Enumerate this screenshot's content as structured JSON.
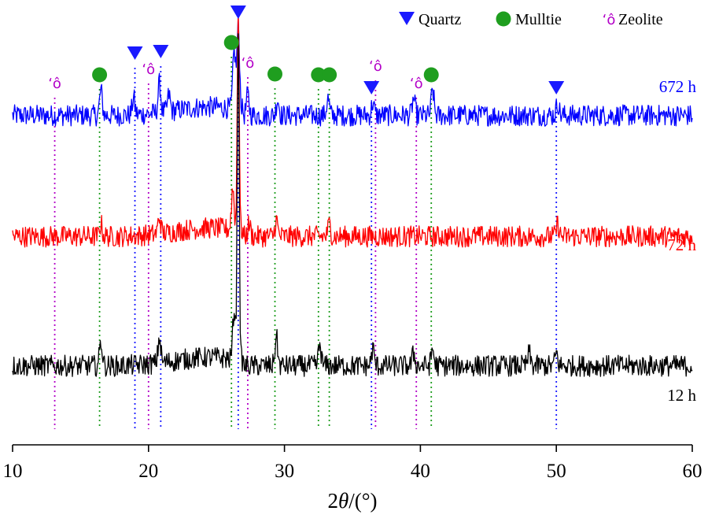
{
  "chart_data": {
    "type": "line",
    "title": "",
    "xlabel": "2θ/(°)",
    "xlabel_prefix": "2",
    "xlabel_theta": "θ",
    "xlabel_suffix": "/(°)",
    "ylabel": "",
    "xlim": [
      10,
      60
    ],
    "xticks": [
      "10",
      "20",
      "30",
      "40",
      "50",
      "60"
    ],
    "ylim": [
      0,
      100
    ],
    "y_axis_visible": false,
    "legend_position": "top-right",
    "legend": [
      {
        "name": "Quartz",
        "marker": "triangle-down",
        "color": "#1a1aff"
      },
      {
        "name": "Mulltie",
        "marker": "circle",
        "color": "#1f9e1f"
      },
      {
        "name": "Zeolite",
        "marker": "glyph",
        "glyph": "‘ô",
        "color": "#b300c8"
      }
    ],
    "series": [
      {
        "name": "672 h",
        "color": "#0000ff",
        "baseline": 78,
        "noise": 1.6,
        "peaks": [
          [
            16.5,
            6
          ],
          [
            18.9,
            4
          ],
          [
            20.8,
            7
          ],
          [
            21.5,
            4
          ],
          [
            26.3,
            14
          ],
          [
            26.6,
            20
          ],
          [
            27.3,
            5
          ],
          [
            29.5,
            4
          ],
          [
            33.2,
            4
          ],
          [
            36.5,
            3
          ],
          [
            39.5,
            4
          ],
          [
            40.9,
            6
          ],
          [
            50.1,
            3
          ]
        ]
      },
      {
        "name": "72 h",
        "color": "#ff0000",
        "baseline": 49,
        "noise": 1.6,
        "peaks": [
          [
            16.5,
            3
          ],
          [
            20.8,
            4
          ],
          [
            26.2,
            10
          ],
          [
            26.6,
            55
          ],
          [
            27.4,
            3
          ],
          [
            29.4,
            4
          ],
          [
            33.3,
            3
          ],
          [
            50.1,
            3
          ]
        ]
      },
      {
        "name": "12 h",
        "color": "#000000",
        "baseline": 18,
        "noise": 1.6,
        "peaks": [
          [
            16.5,
            6
          ],
          [
            20.8,
            6
          ],
          [
            26.3,
            12
          ],
          [
            26.6,
            80
          ],
          [
            29.4,
            7
          ],
          [
            32.6,
            5
          ],
          [
            36.5,
            4
          ],
          [
            39.5,
            3
          ],
          [
            40.9,
            4
          ],
          [
            48.0,
            3
          ],
          [
            50.0,
            3
          ]
        ]
      }
    ],
    "markers": [
      {
        "phase": "Zeolite",
        "x": 13.1
      },
      {
        "phase": "Mulltie",
        "x": 16.4
      },
      {
        "phase": "Quartz",
        "x": 19.0
      },
      {
        "phase": "Zeolite",
        "x": 20.0
      },
      {
        "phase": "Quartz",
        "x": 20.9
      },
      {
        "phase": "Mulltie",
        "x": 26.1
      },
      {
        "phase": "Quartz",
        "x": 26.6
      },
      {
        "phase": "Zeolite",
        "x": 27.3
      },
      {
        "phase": "Mulltie",
        "x": 29.3
      },
      {
        "phase": "Mulltie",
        "x": 32.5
      },
      {
        "phase": "Mulltie",
        "x": 33.3
      },
      {
        "phase": "Quartz",
        "x": 36.4
      },
      {
        "phase": "Zeolite",
        "x": 36.7
      },
      {
        "phase": "Zeolite",
        "x": 39.7
      },
      {
        "phase": "Mulltie",
        "x": 40.8
      },
      {
        "phase": "Quartz",
        "x": 50.0
      }
    ]
  }
}
